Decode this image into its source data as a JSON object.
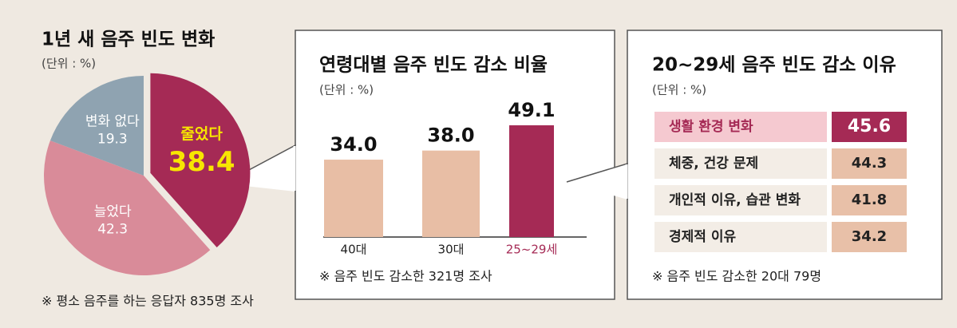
{
  "chart_data": [
    {
      "type": "pie",
      "title": "1년 새 음주 빈도 변화",
      "subtitle": "(단위 : %)",
      "categories": [
        "줄었다",
        "늘었다",
        "변화 없다"
      ],
      "values": [
        38.4,
        42.3,
        19.3
      ],
      "colors": [
        "#a52a55",
        "#d98b99",
        "#8fa3b1"
      ],
      "label_colors": [
        "#f7e600",
        "#ffffff",
        "#ffffff"
      ],
      "note": "※ 평소 음주를 하는 응답자 835명 조사"
    },
    {
      "type": "bar",
      "title": "연령대별 음주 빈도 감소 비율",
      "subtitle": "(단위 : %)",
      "categories": [
        "40대",
        "30대",
        "25~29세"
      ],
      "values": [
        34.0,
        38.0,
        49.1
      ],
      "value_labels": [
        "34.0",
        "38.0",
        "49.1"
      ],
      "colors": [
        "#e8bea5",
        "#e8bea5",
        "#a52a55"
      ],
      "label_colors": [
        "#222222",
        "#222222",
        "#a52a55"
      ],
      "note": "※ 음주 빈도 감소한 321명 조사"
    },
    {
      "type": "table",
      "title": "20~29세 음주 빈도 감소 이유",
      "subtitle": "(단위 : %)",
      "categories": [
        "생활 환경 변화",
        "체중, 건강 문제",
        "개인적 이유, 습관 변화",
        "경제적 이유"
      ],
      "values": [
        45.6,
        44.3,
        41.8,
        34.2
      ],
      "colors": [
        "#a52a55",
        "#e8c0a8",
        "#e8c0a8",
        "#e8c0a8"
      ],
      "row_colors": [
        "#f5c9d0",
        "#f3ede6",
        "#f3ede6",
        "#f3ede6"
      ],
      "label_colors": [
        "#a52a55",
        "#222222",
        "#222222",
        "#222222"
      ],
      "value_text_colors": [
        "#ffffff",
        "#222222",
        "#222222",
        "#222222"
      ],
      "note": "※ 음주 빈도 감소한 20대 79명"
    }
  ]
}
